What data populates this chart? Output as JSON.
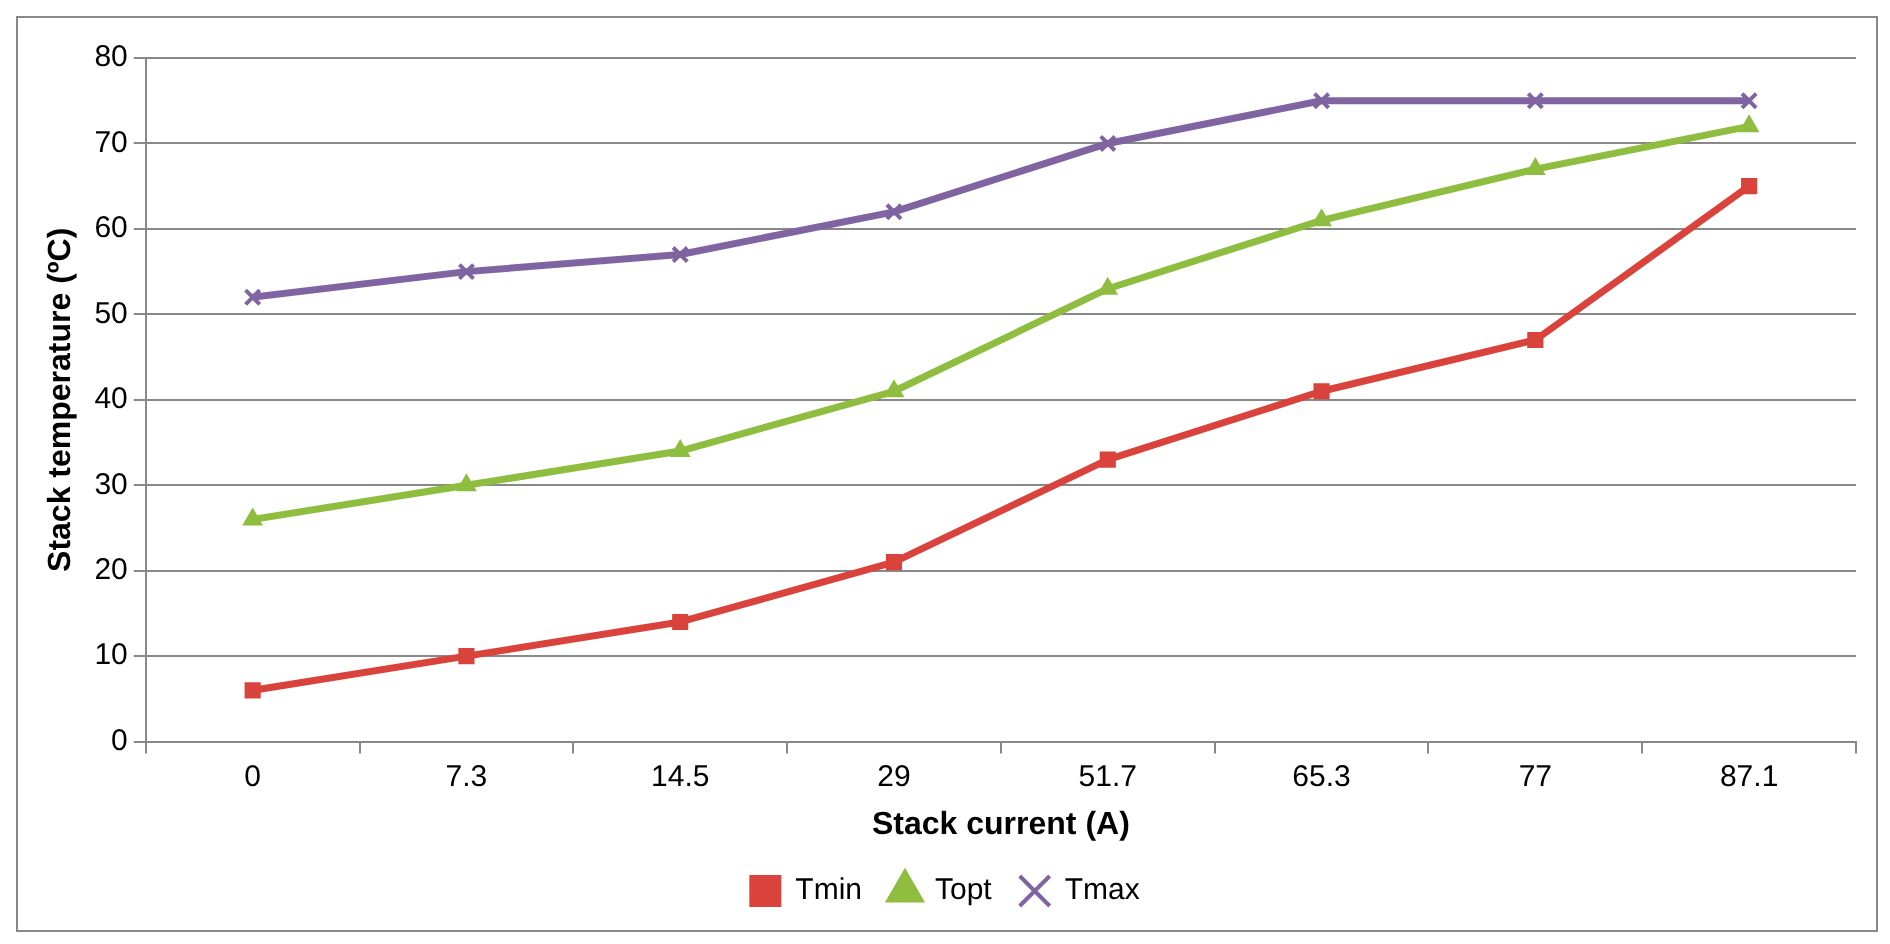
{
  "chart_data": {
    "type": "line",
    "xlabel": "Stack current (A)",
    "ylabel": "Stack temperature (ºC)",
    "categories": [
      "0",
      "7.3",
      "14.5",
      "29",
      "51.7",
      "65.3",
      "77",
      "87.1"
    ],
    "series": [
      {
        "name": "Tmin",
        "color": "#d9433c",
        "marker": "square",
        "values": [
          6,
          10,
          14,
          21,
          33,
          41,
          47,
          65
        ]
      },
      {
        "name": "Topt",
        "color": "#8fbd3f",
        "marker": "triangle",
        "values": [
          26,
          30,
          34,
          41,
          53,
          61,
          67,
          72
        ]
      },
      {
        "name": "Tmax",
        "color": "#8064a2",
        "marker": "cross",
        "values": [
          52,
          55,
          57,
          62,
          70,
          75,
          75,
          75
        ]
      }
    ],
    "ylim": [
      0,
      80
    ],
    "yticks": [
      0,
      10,
      20,
      30,
      40,
      50,
      60,
      70,
      80
    ],
    "grid": "y",
    "legend": "bottom",
    "line_style": "solid"
  }
}
